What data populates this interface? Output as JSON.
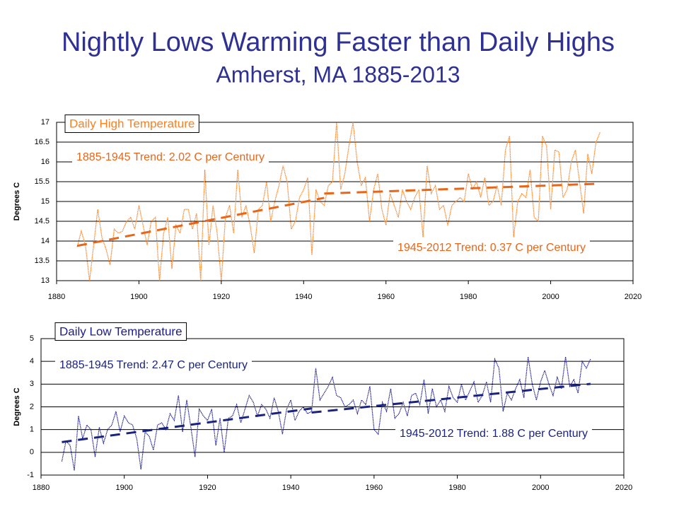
{
  "header": {
    "title": "Nightly Lows Warming Faster than Daily Highs",
    "subtitle": "Amherst, MA  1885-2013"
  },
  "chart_data": [
    {
      "type": "line",
      "ylabel": "Degrees C",
      "xlim": [
        1880,
        2020
      ],
      "xticks": [
        1880,
        1900,
        1920,
        1940,
        1960,
        1980,
        2000,
        2020
      ],
      "ylim": [
        13,
        17
      ],
      "yticks": [
        13,
        13.5,
        14,
        14.5,
        15,
        15.5,
        16,
        16.5,
        17
      ],
      "grid": true,
      "x": [
        1885,
        1886,
        1887,
        1888,
        1889,
        1890,
        1891,
        1892,
        1893,
        1894,
        1895,
        1896,
        1897,
        1898,
        1899,
        1900,
        1901,
        1902,
        1903,
        1904,
        1905,
        1906,
        1907,
        1908,
        1909,
        1910,
        1911,
        1912,
        1913,
        1914,
        1915,
        1916,
        1917,
        1918,
        1919,
        1920,
        1921,
        1922,
        1923,
        1924,
        1925,
        1926,
        1927,
        1928,
        1929,
        1930,
        1931,
        1932,
        1933,
        1934,
        1935,
        1936,
        1937,
        1938,
        1939,
        1940,
        1941,
        1942,
        1943,
        1944,
        1945,
        1946,
        1947,
        1948,
        1949,
        1950,
        1951,
        1952,
        1953,
        1954,
        1955,
        1956,
        1957,
        1958,
        1959,
        1960,
        1961,
        1962,
        1963,
        1964,
        1965,
        1966,
        1967,
        1968,
        1969,
        1970,
        1971,
        1972,
        1973,
        1974,
        1975,
        1976,
        1977,
        1978,
        1979,
        1980,
        1981,
        1982,
        1983,
        1984,
        1985,
        1986,
        1987,
        1988,
        1989,
        1990,
        1991,
        1992,
        1993,
        1994,
        1995,
        1996,
        1997,
        1998,
        1999,
        2000,
        2001,
        2002,
        2003,
        2004,
        2005,
        2006,
        2007,
        2008,
        2009,
        2010,
        2011,
        2012
      ],
      "series": [
        {
          "name": "Daily High Temperature",
          "color": "#ff7f1e",
          "values": [
            13.85,
            14.25,
            13.9,
            13.0,
            13.9,
            14.8,
            14.1,
            13.8,
            13.4,
            14.3,
            14.2,
            14.25,
            14.5,
            14.6,
            14.3,
            14.9,
            14.4,
            13.9,
            14.5,
            14.6,
            13.0,
            14.2,
            14.6,
            13.3,
            14.4,
            14.2,
            14.8,
            14.8,
            14.3,
            14.7,
            13.0,
            15.8,
            13.9,
            14.9,
            14.2,
            13.0,
            14.6,
            14.9,
            14.2,
            15.8,
            14.6,
            14.9,
            14.4,
            13.7,
            14.8,
            14.9,
            15.5,
            14.5,
            15.0,
            15.4,
            15.9,
            15.5,
            14.3,
            14.5,
            15.1,
            15.3,
            15.6,
            13.65,
            15.3,
            15.0,
            14.9,
            15.4,
            15.5,
            17.0,
            15.3,
            15.7,
            16.4,
            17.0,
            16.0,
            15.4,
            15.6,
            14.5,
            15.3,
            15.7,
            14.8,
            14.4,
            15.2,
            14.9,
            14.6,
            15.3,
            15.0,
            14.8,
            15.1,
            15.3,
            14.1,
            15.9,
            15.2,
            15.4,
            14.8,
            14.9,
            14.4,
            14.9,
            15.0,
            15.1,
            15.0,
            15.7,
            15.3,
            15.5,
            15.1,
            15.6,
            14.9,
            15.0,
            15.4,
            14.9,
            16.3,
            16.65,
            14.1,
            15.0,
            15.2,
            15.1,
            15.8,
            14.6,
            14.5,
            16.65,
            16.4,
            14.8,
            16.3,
            16.25,
            15.1,
            15.3,
            16.0,
            16.3,
            15.5,
            14.7,
            16.2,
            15.7,
            16.5,
            16.75
          ]
        }
      ],
      "trends": [
        {
          "label": "1885-1945 Trend:  2.02 C per Century",
          "color": "#e8661a",
          "x": [
            1885,
            1945
          ],
          "values": [
            13.88,
            15.09
          ]
        },
        {
          "label": "1945-2012 Trend:  0.37 C per Century",
          "color": "#e8661a",
          "x": [
            1945,
            2012
          ],
          "values": [
            15.2,
            15.45
          ]
        }
      ]
    },
    {
      "type": "line",
      "ylabel": "Degrees C",
      "xlim": [
        1880,
        2020
      ],
      "xticks": [
        1880,
        1900,
        1920,
        1940,
        1960,
        1980,
        2000,
        2020
      ],
      "ylim": [
        -1,
        5
      ],
      "yticks": [
        -1,
        0,
        1,
        2,
        3,
        4,
        5
      ],
      "grid": true,
      "x": [
        1885,
        1886,
        1887,
        1888,
        1889,
        1890,
        1891,
        1892,
        1893,
        1894,
        1895,
        1896,
        1897,
        1898,
        1899,
        1900,
        1901,
        1902,
        1903,
        1904,
        1905,
        1906,
        1907,
        1908,
        1909,
        1910,
        1911,
        1912,
        1913,
        1914,
        1915,
        1916,
        1917,
        1918,
        1919,
        1920,
        1921,
        1922,
        1923,
        1924,
        1925,
        1926,
        1927,
        1928,
        1929,
        1930,
        1931,
        1932,
        1933,
        1934,
        1935,
        1936,
        1937,
        1938,
        1939,
        1940,
        1941,
        1942,
        1943,
        1944,
        1945,
        1946,
        1947,
        1948,
        1949,
        1950,
        1951,
        1952,
        1953,
        1954,
        1955,
        1956,
        1957,
        1958,
        1959,
        1960,
        1961,
        1962,
        1963,
        1964,
        1965,
        1966,
        1967,
        1968,
        1969,
        1970,
        1971,
        1972,
        1973,
        1974,
        1975,
        1976,
        1977,
        1978,
        1979,
        1980,
        1981,
        1982,
        1983,
        1984,
        1985,
        1986,
        1987,
        1988,
        1989,
        1990,
        1991,
        1992,
        1993,
        1994,
        1995,
        1996,
        1997,
        1998,
        1999,
        2000,
        2001,
        2002,
        2003,
        2004,
        2005,
        2006,
        2007,
        2008,
        2009,
        2010,
        2011,
        2012
      ],
      "series": [
        {
          "name": "Daily Low Temperature",
          "color": "#1c1c8c",
          "values": [
            -0.4,
            0.5,
            0.3,
            -0.8,
            1.6,
            0.6,
            1.2,
            1.0,
            -0.2,
            1.1,
            0.4,
            1.0,
            1.2,
            1.8,
            0.9,
            1.6,
            1.3,
            1.2,
            0.6,
            -0.75,
            0.9,
            0.7,
            0.1,
            1.2,
            1.3,
            1.0,
            1.7,
            1.4,
            2.5,
            0.9,
            2.3,
            1.1,
            -0.2,
            1.9,
            1.6,
            1.4,
            1.9,
            0.3,
            1.5,
            0.0,
            1.5,
            1.6,
            2.1,
            1.3,
            1.9,
            2.5,
            2.2,
            1.6,
            2.1,
            1.9,
            1.5,
            2.4,
            1.8,
            0.8,
            1.9,
            2.3,
            1.4,
            1.8,
            2.0,
            1.7,
            1.8,
            3.7,
            2.3,
            2.6,
            2.9,
            3.3,
            2.5,
            2.4,
            2.0,
            2.1,
            2.3,
            1.7,
            2.3,
            2.1,
            2.9,
            1.0,
            0.8,
            2.2,
            1.8,
            2.8,
            1.5,
            1.7,
            2.2,
            1.6,
            2.5,
            2.6,
            2.1,
            3.2,
            1.7,
            2.8,
            2.0,
            2.3,
            1.8,
            2.9,
            2.4,
            2.2,
            3.0,
            2.3,
            2.7,
            3.1,
            2.2,
            2.5,
            3.1,
            2.2,
            4.1,
            3.7,
            1.8,
            2.6,
            2.3,
            2.8,
            3.2,
            2.4,
            4.2,
            3.0,
            2.3,
            3.1,
            3.6,
            3.0,
            2.5,
            3.3,
            2.8,
            4.2,
            2.9,
            3.2,
            2.6,
            4.0,
            3.7,
            4.1
          ]
        }
      ],
      "trends": [
        {
          "label": "1885-1945 Trend:  2.47 C per Century",
          "color": "#1a237e",
          "x": [
            1885,
            1945
          ],
          "values": [
            0.45,
            1.93
          ]
        },
        {
          "label": "1945-2012 Trend:  1.88 C per Century",
          "color": "#1a237e",
          "x": [
            1945,
            2012
          ],
          "values": [
            1.75,
            3.01
          ]
        }
      ]
    }
  ]
}
